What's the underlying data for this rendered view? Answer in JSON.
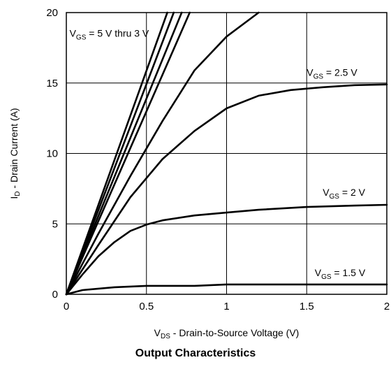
{
  "chart_data": {
    "type": "line",
    "caption": "Output Characteristics",
    "x_axis": {
      "label_main": "V",
      "label_sub": "DS",
      "label_rest": " - Drain-to-Source Voltage (V)",
      "range": [
        0,
        2
      ],
      "ticks": [
        "0",
        "0.5",
        "1",
        "1.5",
        "2"
      ]
    },
    "y_axis": {
      "label_main": "I",
      "label_sub": "D",
      "label_rest": " - Drain Current (A)",
      "range": [
        0,
        20
      ],
      "ticks": [
        "0",
        "5",
        "10",
        "15",
        "20"
      ]
    },
    "grid": true,
    "annotations": [
      {
        "id": "vgs-5-thru-3",
        "main": "V",
        "sub": "GS",
        "rest": " = 5 V thru 3 V",
        "x": 0.02,
        "y": 18.3
      },
      {
        "id": "vgs-2-5",
        "main": "V",
        "sub": "GS",
        "rest": " = 2.5 V",
        "x": 1.5,
        "y": 15.5
      },
      {
        "id": "vgs-2",
        "main": "V",
        "sub": "GS",
        "rest": " = 2 V",
        "x": 1.6,
        "y": 7.0
      },
      {
        "id": "vgs-1-5",
        "main": "V",
        "sub": "GS",
        "rest": " = 1.5 V",
        "x": 1.55,
        "y": 1.3
      }
    ],
    "series": [
      {
        "x": [
          0,
          0.63
        ],
        "y": [
          0,
          20
        ]
      },
      {
        "x": [
          0,
          0.67
        ],
        "y": [
          0,
          20
        ]
      },
      {
        "x": [
          0,
          0.72
        ],
        "y": [
          0,
          20
        ]
      },
      {
        "x": [
          0,
          0.77
        ],
        "y": [
          0,
          20
        ]
      },
      {
        "x": [
          0,
          0.2,
          0.4,
          0.6,
          0.8,
          1.0,
          1.2
        ],
        "y": [
          0,
          4.3,
          8.4,
          12.3,
          15.9,
          18.3,
          20
        ]
      },
      {
        "x": [
          0,
          0.2,
          0.4,
          0.6,
          0.8,
          1.0,
          1.2,
          1.4,
          1.6,
          1.8,
          2.0
        ],
        "y": [
          0,
          3.5,
          6.9,
          9.6,
          11.6,
          13.2,
          14.1,
          14.5,
          14.7,
          14.85,
          14.9
        ]
      },
      {
        "x": [
          0,
          0.1,
          0.2,
          0.3,
          0.4,
          0.5,
          0.6,
          0.8,
          1.0,
          1.2,
          1.5,
          1.8,
          2.0
        ],
        "y": [
          0,
          1.4,
          2.7,
          3.7,
          4.5,
          4.95,
          5.25,
          5.6,
          5.8,
          6.0,
          6.2,
          6.3,
          6.35
        ]
      },
      {
        "x": [
          0,
          0.1,
          0.3,
          0.5,
          0.8,
          1.0,
          1.5,
          2.0
        ],
        "y": [
          0,
          0.3,
          0.5,
          0.6,
          0.6,
          0.7,
          0.7,
          0.7
        ]
      }
    ]
  }
}
